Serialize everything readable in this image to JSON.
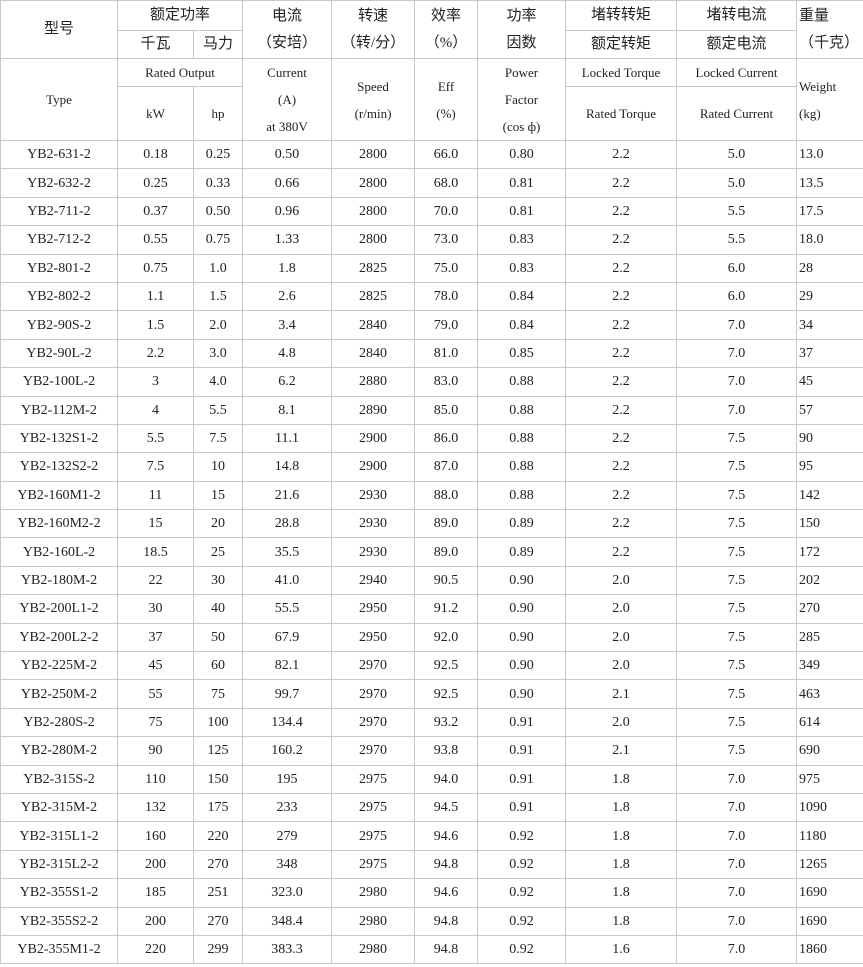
{
  "header_cn": {
    "type": "型号",
    "rated_output": "额定功率",
    "kw": "千瓦",
    "hp": "马力",
    "current": "电流",
    "current_unit": "（安培）",
    "speed": "转速",
    "speed_unit": "（转/分）",
    "eff": "效率",
    "eff_unit": "（%）",
    "power_factor_1": "功率",
    "power_factor_2": "因数",
    "locked_torque": "堵转转矩",
    "rated_torque": "额定转矩",
    "locked_current": "堵转电流",
    "rated_current": "额定电流",
    "weight": "重量",
    "weight_unit": "（千克）"
  },
  "header_en": {
    "type": "Type",
    "rated_output": "Rated Output",
    "kw": "kW",
    "hp": "hp",
    "current": "Current",
    "current_unit": "(A)",
    "current_voltage": "at 380V",
    "speed": "Speed",
    "speed_unit": "(r/min)",
    "eff": "Eff",
    "eff_unit": "(%)",
    "power_factor_1": "Power",
    "power_factor_2": "Factor",
    "power_factor_3": "(cos ф)",
    "locked_torque": "Locked Torque",
    "rated_torque": "Rated Torque",
    "locked_current": "Locked Current",
    "rated_current": "Rated Current",
    "weight": "Weight",
    "weight_unit": "(kg)"
  },
  "table": {
    "rows": [
      [
        "YB2-631-2",
        "0.18",
        "0.25",
        "0.50",
        "2800",
        "66.0",
        "0.80",
        "2.2",
        "5.0",
        "13.0"
      ],
      [
        "YB2-632-2",
        "0.25",
        "0.33",
        "0.66",
        "2800",
        "68.0",
        "0.81",
        "2.2",
        "5.0",
        "13.5"
      ],
      [
        "YB2-711-2",
        "0.37",
        "0.50",
        "0.96",
        "2800",
        "70.0",
        "0.81",
        "2.2",
        "5.5",
        "17.5"
      ],
      [
        "YB2-712-2",
        "0.55",
        "0.75",
        "1.33",
        "2800",
        "73.0",
        "0.83",
        "2.2",
        "5.5",
        "18.0"
      ],
      [
        "YB2-801-2",
        "0.75",
        "1.0",
        "1.8",
        "2825",
        "75.0",
        "0.83",
        "2.2",
        "6.0",
        "28"
      ],
      [
        "YB2-802-2",
        "1.1",
        "1.5",
        "2.6",
        "2825",
        "78.0",
        "0.84",
        "2.2",
        "6.0",
        "29"
      ],
      [
        "YB2-90S-2",
        "1.5",
        "2.0",
        "3.4",
        "2840",
        "79.0",
        "0.84",
        "2.2",
        "7.0",
        "34"
      ],
      [
        "YB2-90L-2",
        "2.2",
        "3.0",
        "4.8",
        "2840",
        "81.0",
        "0.85",
        "2.2",
        "7.0",
        "37"
      ],
      [
        "YB2-100L-2",
        "3",
        "4.0",
        "6.2",
        "2880",
        "83.0",
        "0.88",
        "2.2",
        "7.0",
        "45"
      ],
      [
        "YB2-112M-2",
        "4",
        "5.5",
        "8.1",
        "2890",
        "85.0",
        "0.88",
        "2.2",
        "7.0",
        "57"
      ],
      [
        "YB2-132S1-2",
        "5.5",
        "7.5",
        "11.1",
        "2900",
        "86.0",
        "0.88",
        "2.2",
        "7.5",
        "90"
      ],
      [
        "YB2-132S2-2",
        "7.5",
        "10",
        "14.8",
        "2900",
        "87.0",
        "0.88",
        "2.2",
        "7.5",
        "95"
      ],
      [
        "YB2-160M1-2",
        "11",
        "15",
        "21.6",
        "2930",
        "88.0",
        "0.88",
        "2.2",
        "7.5",
        "142"
      ],
      [
        "YB2-160M2-2",
        "15",
        "20",
        "28.8",
        "2930",
        "89.0",
        "0.89",
        "2.2",
        "7.5",
        "150"
      ],
      [
        "YB2-160L-2",
        "18.5",
        "25",
        "35.5",
        "2930",
        "89.0",
        "0.89",
        "2.2",
        "7.5",
        "172"
      ],
      [
        "YB2-180M-2",
        "22",
        "30",
        "41.0",
        "2940",
        "90.5",
        "0.90",
        "2.0",
        "7.5",
        "202"
      ],
      [
        "YB2-200L1-2",
        "30",
        "40",
        "55.5",
        "2950",
        "91.2",
        "0.90",
        "2.0",
        "7.5",
        "270"
      ],
      [
        "YB2-200L2-2",
        "37",
        "50",
        "67.9",
        "2950",
        "92.0",
        "0.90",
        "2.0",
        "7.5",
        "285"
      ],
      [
        "YB2-225M-2",
        "45",
        "60",
        "82.1",
        "2970",
        "92.5",
        "0.90",
        "2.0",
        "7.5",
        "349"
      ],
      [
        "YB2-250M-2",
        "55",
        "75",
        "99.7",
        "2970",
        "92.5",
        "0.90",
        "2.1",
        "7.5",
        "463"
      ],
      [
        "YB2-280S-2",
        "75",
        "100",
        "134.4",
        "2970",
        "93.2",
        "0.91",
        "2.0",
        "7.5",
        "614"
      ],
      [
        "YB2-280M-2",
        "90",
        "125",
        "160.2",
        "2970",
        "93.8",
        "0.91",
        "2.1",
        "7.5",
        "690"
      ],
      [
        "YB2-315S-2",
        "110",
        "150",
        "195",
        "2975",
        "94.0",
        "0.91",
        "1.8",
        "7.0",
        "975"
      ],
      [
        "YB2-315M-2",
        "132",
        "175",
        "233",
        "2975",
        "94.5",
        "0.91",
        "1.8",
        "7.0",
        "1090"
      ],
      [
        "YB2-315L1-2",
        "160",
        "220",
        "279",
        "2975",
        "94.6",
        "0.92",
        "1.8",
        "7.0",
        "1180"
      ],
      [
        "YB2-315L2-2",
        "200",
        "270",
        "348",
        "2975",
        "94.8",
        "0.92",
        "1.8",
        "7.0",
        "1265"
      ],
      [
        "YB2-355S1-2",
        "185",
        "251",
        "323.0",
        "2980",
        "94.6",
        "0.92",
        "1.8",
        "7.0",
        "1690"
      ],
      [
        "YB2-355S2-2",
        "200",
        "270",
        "348.4",
        "2980",
        "94.8",
        "0.92",
        "1.8",
        "7.0",
        "1690"
      ],
      [
        "YB2-355M1-2",
        "220",
        "299",
        "383.3",
        "2980",
        "94.8",
        "0.92",
        "1.6",
        "7.0",
        "1860"
      ]
    ]
  }
}
